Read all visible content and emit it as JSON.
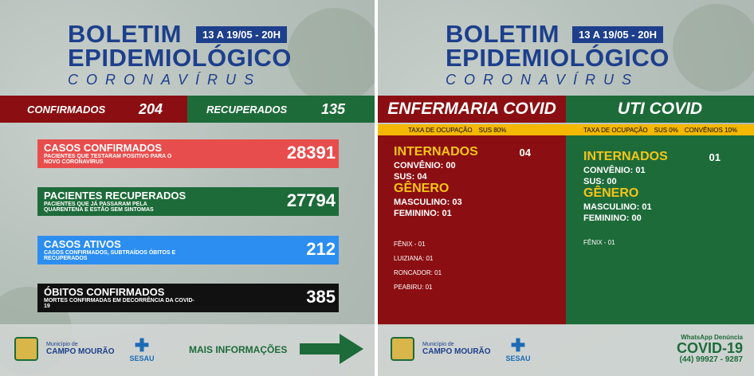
{
  "left": {
    "title1": "BOLETIM",
    "title2": "EPIDEMIOLÓGICO",
    "title3": "CORONAVÍRUS",
    "date": "13 A 19/05 - 20H",
    "confirmados_label": "CONFIRMADOS",
    "confirmados_value": "204",
    "recuperados_label": "RECUPERADOS",
    "recuperados_value": "135",
    "cards": [
      {
        "title": "CASOS CONFIRMADOS",
        "sub": "PACIENTES QUE TESTARAM POSITIVO PARA O NOVO CORONAVÍRUS",
        "value": "28391",
        "color": "#e84d4d"
      },
      {
        "title": "PACIENTES RECUPERADOS",
        "sub": "PACIENTES QUE JÁ PASSARAM PELA QUARENTENA E ESTÃO SEM SINTOMAS",
        "value": "27794",
        "color": "#1e6b3a"
      },
      {
        "title": "CASOS ATIVOS",
        "sub": "CASOS CONFIRMADOS, SUBTRAÍDOS ÓBITOS E RECUPERADOS",
        "value": "212",
        "color": "#2b8ef0"
      },
      {
        "title": "ÓBITOS CONFIRMADOS",
        "sub": "MORTES CONFIRMADAS EM DECORRÊNCIA DA COVID-19",
        "value": "385",
        "color": "#111111"
      }
    ],
    "municipio_small": "Município de",
    "municipio": "CAMPO MOURÃO",
    "sesau": "SESAU",
    "mais": "MAIS INFORMAÇÕES"
  },
  "right": {
    "title1": "BOLETIM",
    "title2": "EPIDEMIOLÓGICO",
    "title3": "CORONAVÍRUS",
    "date": "13 A 19/05 - 20H",
    "enfermaria_title": "ENFERMARIA COVID",
    "uti_title": "UTI COVID",
    "enf_taxa": "TAXA DE OCUPAÇÃO",
    "enf_sus": "SUS 80%",
    "uti_taxa": "TAXA DE OCUPAÇÃO",
    "uti_sus": "SUS 0%",
    "uti_conv": "CONVÊNIOS 10%",
    "enf": {
      "internados": "INTERNADOS",
      "internados_value": "04",
      "convenio": "CONVÊNIO: 00",
      "sus": "SUS: 04",
      "genero": "GÊNERO",
      "masc": "MASCULINO: 03",
      "fem": "FEMININO: 01",
      "cities": [
        "FÊNIX - 01",
        "LUIZIANA: 01",
        "RONCADOR: 01",
        "PEABIRU: 01"
      ]
    },
    "uti": {
      "internados": "INTERNADOS",
      "internados_value": "01",
      "convenio": "CONVÊNIO: 01",
      "sus": "SUS: 00",
      "genero": "GÊNERO",
      "masc": "MASCULINO: 01",
      "fem": "FEMININO: 00",
      "cities": [
        "FÊNIX - 01"
      ]
    },
    "municipio_small": "Município de",
    "municipio": "CAMPO MOURÃO",
    "sesau": "SESAU",
    "whats": "WhatsApp Denúncia",
    "covid": "COVID-19",
    "phone": "(44) 99927 - 9287"
  }
}
